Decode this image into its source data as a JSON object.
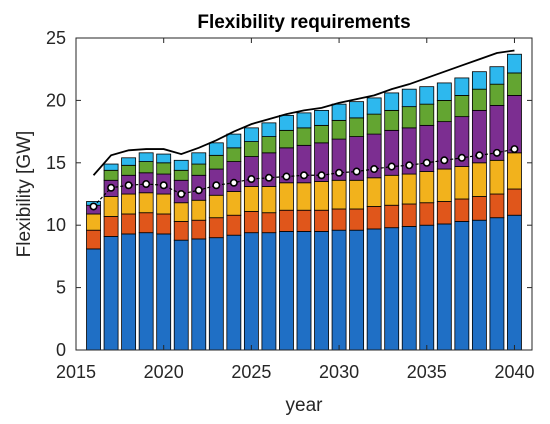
{
  "chart_data": {
    "type": "bar",
    "stacked": true,
    "title": "Flexibility requirements",
    "xlabel": "year",
    "ylabel": "Flexibility [GW]",
    "xlim": [
      2015,
      2041
    ],
    "ylim": [
      0,
      25
    ],
    "xticks": [
      "2015",
      "2020",
      "2025",
      "2030",
      "2035",
      "2040"
    ],
    "yticks": [
      "0",
      "5",
      "10",
      "15",
      "20",
      "25"
    ],
    "grid": false,
    "legend": "none",
    "x": [
      2016,
      2017,
      2018,
      2019,
      2020,
      2021,
      2022,
      2023,
      2024,
      2025,
      2026,
      2027,
      2028,
      2029,
      2030,
      2031,
      2032,
      2033,
      2034,
      2035,
      2036,
      2037,
      2038,
      2039,
      2040
    ],
    "series": [
      {
        "color": "#1f6fc5",
        "values": [
          8.1,
          9.1,
          9.3,
          9.4,
          9.3,
          8.8,
          8.9,
          9.0,
          9.2,
          9.4,
          9.4,
          9.5,
          9.5,
          9.5,
          9.6,
          9.6,
          9.7,
          9.8,
          9.9,
          10.0,
          10.1,
          10.3,
          10.4,
          10.6,
          10.8
        ]
      },
      {
        "color": "#e0561b",
        "values": [
          1.5,
          1.6,
          1.6,
          1.6,
          1.6,
          1.5,
          1.5,
          1.6,
          1.6,
          1.7,
          1.6,
          1.7,
          1.7,
          1.7,
          1.7,
          1.7,
          1.8,
          1.8,
          1.8,
          1.8,
          1.8,
          1.8,
          1.9,
          1.9,
          2.1
        ]
      },
      {
        "color": "#f2b21c",
        "values": [
          1.3,
          1.6,
          1.6,
          1.6,
          1.6,
          1.5,
          1.6,
          1.8,
          1.9,
          2.0,
          2.1,
          2.2,
          2.2,
          2.3,
          2.3,
          2.3,
          2.3,
          2.4,
          2.4,
          2.5,
          2.6,
          2.6,
          2.7,
          2.7,
          2.9
        ]
      },
      {
        "color": "#7c2e91",
        "values": [
          0.7,
          1.3,
          1.5,
          1.6,
          1.6,
          1.8,
          2.0,
          2.1,
          2.4,
          2.4,
          2.7,
          2.8,
          3.0,
          3.1,
          3.3,
          3.5,
          3.5,
          3.6,
          3.7,
          3.7,
          3.8,
          4.0,
          4.2,
          4.4,
          4.6
        ]
      },
      {
        "color": "#63a531",
        "values": [
          0.0,
          0.8,
          0.8,
          0.9,
          0.9,
          0.8,
          0.9,
          1.1,
          1.1,
          1.2,
          1.3,
          1.4,
          1.4,
          1.4,
          1.5,
          1.5,
          1.6,
          1.6,
          1.7,
          1.7,
          1.7,
          1.7,
          1.7,
          1.7,
          1.8
        ]
      },
      {
        "color": "#2db8ee",
        "values": [
          0.3,
          0.5,
          0.6,
          0.7,
          0.7,
          0.8,
          0.9,
          1.0,
          1.1,
          1.1,
          1.1,
          1.2,
          1.2,
          1.2,
          1.3,
          1.3,
          1.3,
          1.4,
          1.4,
          1.4,
          1.4,
          1.4,
          1.4,
          1.4,
          1.5
        ]
      }
    ],
    "total_line": {
      "color": "#000000",
      "values": [
        14.0,
        15.6,
        16.0,
        16.1,
        16.1,
        15.7,
        16.2,
        16.8,
        17.5,
        18.1,
        18.5,
        18.9,
        19.2,
        19.4,
        19.8,
        20.1,
        20.4,
        20.9,
        21.3,
        21.8,
        22.3,
        22.8,
        23.3,
        23.8,
        24.0
      ]
    },
    "marker_line": {
      "color": "#000000",
      "marker_fill": "#ffffff",
      "values": [
        11.5,
        13.0,
        13.2,
        13.3,
        13.2,
        12.5,
        12.8,
        13.2,
        13.4,
        13.7,
        13.8,
        13.9,
        14.0,
        14.0,
        14.2,
        14.3,
        14.5,
        14.7,
        14.8,
        15.0,
        15.2,
        15.4,
        15.6,
        15.8,
        16.1
      ]
    }
  }
}
